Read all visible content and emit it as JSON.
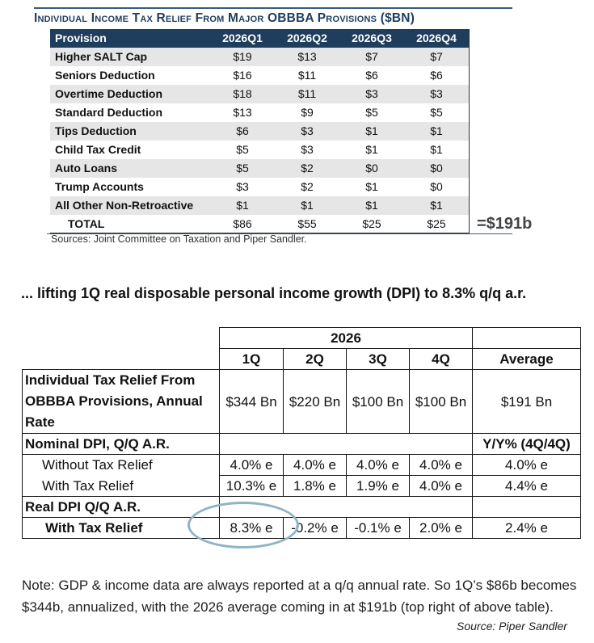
{
  "top_table": {
    "title": "Individual Income Tax Relief From Major OBBBA Provisions ($BN)",
    "columns": [
      "Provision",
      "2026Q1",
      "2026Q2",
      "2026Q3",
      "2026Q4"
    ],
    "rows": [
      [
        "Higher SALT Cap",
        "$19",
        "$13",
        "$7",
        "$7"
      ],
      [
        "Seniors Deduction",
        "$16",
        "$11",
        "$6",
        "$6"
      ],
      [
        "Overtime Deduction",
        "$18",
        "$11",
        "$3",
        "$3"
      ],
      [
        "Standard Deduction",
        "$13",
        "$9",
        "$5",
        "$5"
      ],
      [
        "Tips Deduction",
        "$6",
        "$3",
        "$1",
        "$1"
      ],
      [
        "Child Tax Credit",
        "$5",
        "$3",
        "$1",
        "$1"
      ],
      [
        "Auto Loans",
        "$5",
        "$2",
        "$0",
        "$0"
      ],
      [
        "Trump Accounts",
        "$3",
        "$2",
        "$1",
        "$0"
      ],
      [
        "All Other Non-Retroactive",
        "$1",
        "$1",
        "$1",
        "$1"
      ]
    ],
    "total": [
      "TOTAL",
      "$86",
      "$55",
      "$25",
      "$25"
    ],
    "sources": "Sources: Joint Committee on Taxation and Piper Sandler.",
    "total_annotation": "=$191b"
  },
  "headline": "... lifting 1Q real disposable personal income growth (DPI) to 8.3% q/q a.r.",
  "dpi_table": {
    "year": "2026",
    "quarters": [
      "1Q",
      "2Q",
      "3Q",
      "4Q"
    ],
    "average_label": "Average",
    "relief_label": "Individual Tax Relief From OBBBA Provisions, Annual Rate",
    "relief_values": [
      "$344 Bn",
      "$220 Bn",
      "$100 Bn",
      "$100 Bn"
    ],
    "relief_average": "$191 Bn",
    "nominal_label": "Nominal DPI, Q/Q A.R.",
    "yy_label": "Y/Y% (4Q/4Q)",
    "without_label": "Without Tax Relief",
    "without_values": [
      "4.0% e",
      "4.0% e",
      "4.0% e",
      "4.0% e"
    ],
    "without_yy": "4.0% e",
    "with_label": "With Tax Relief",
    "with_values": [
      "10.3% e",
      "1.8% e",
      "1.9% e",
      "4.0% e"
    ],
    "with_yy": "4.4% e",
    "real_label": "Real DPI Q/Q A.R.",
    "real_with_label": "With Tax Relief",
    "real_with_values": [
      "8.3% e",
      "-0.2% e",
      "-0.1% e",
      "2.0% e"
    ],
    "real_with_yy": "2.4% e"
  },
  "note": "Note: GDP & income data are always reported at a q/q annual rate. So 1Q’s $86b becomes $344b, annualized, with the 2026 average coming in at $191b (top right of above table).",
  "source_bottom": "Source: Piper Sandler",
  "colors": {
    "header_navy": "#1f3d5c",
    "stripe_gray": "#e6e6e6",
    "highlight_circle": "#8fb4c6"
  }
}
